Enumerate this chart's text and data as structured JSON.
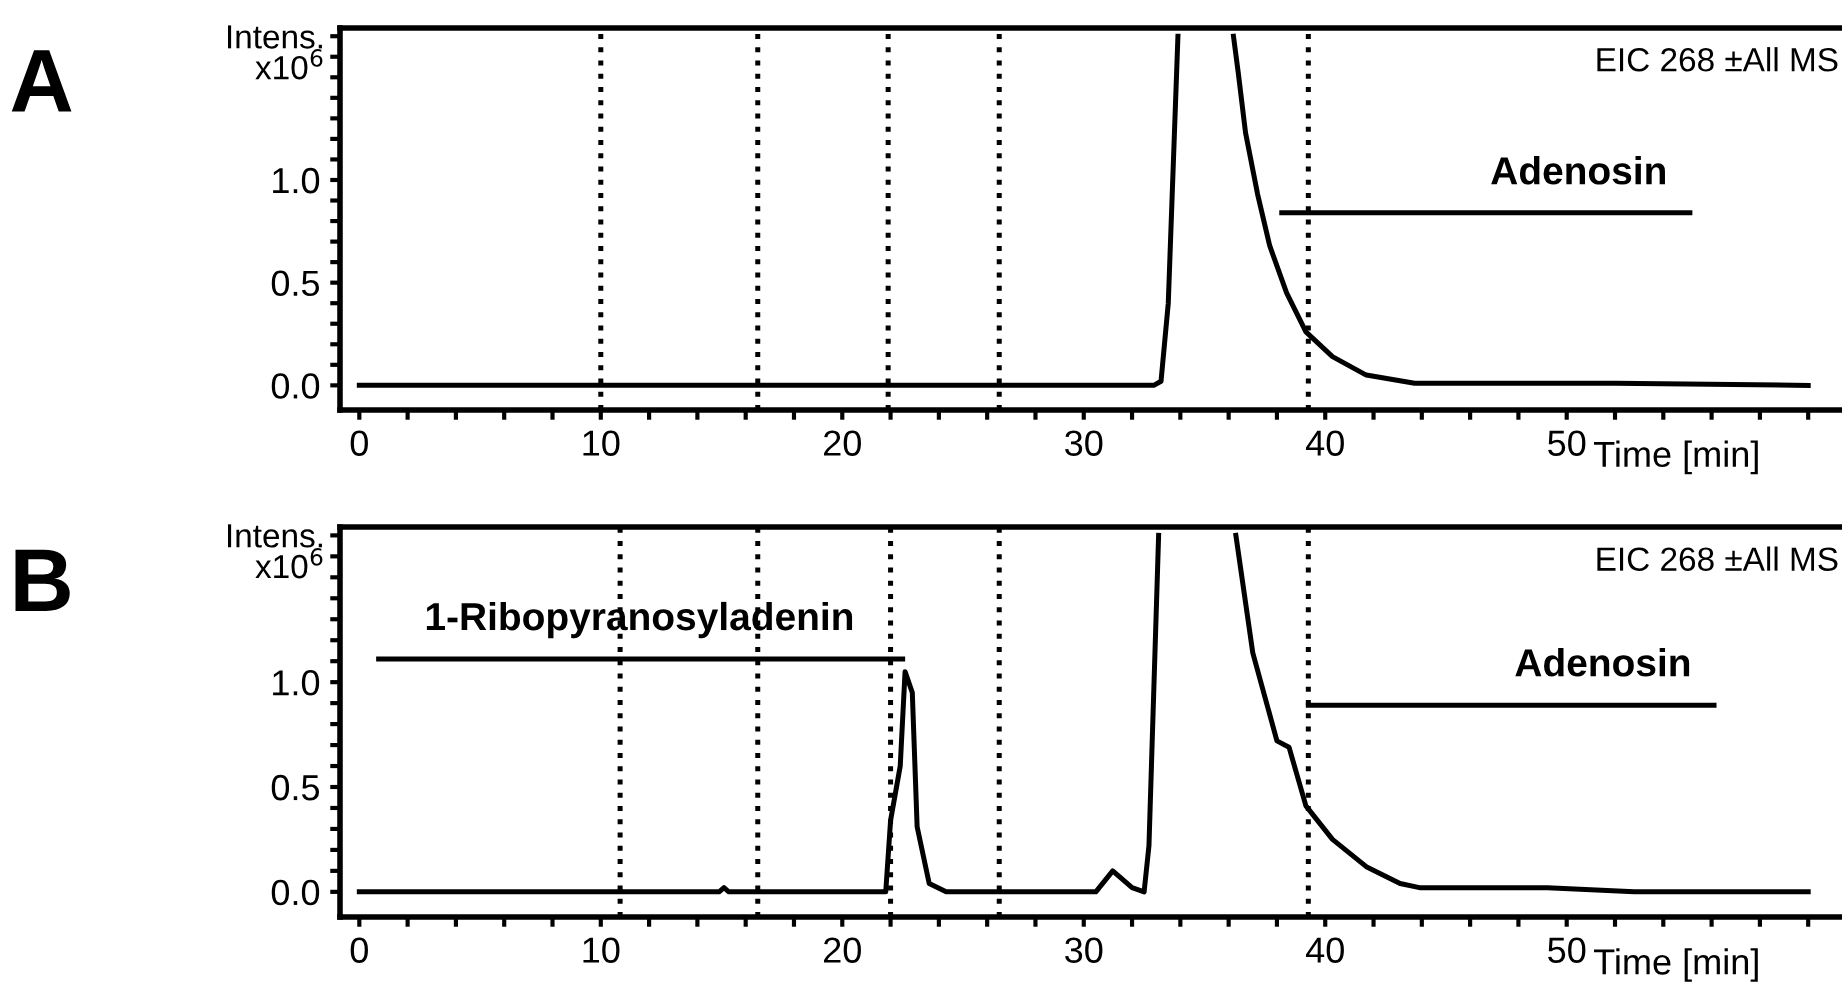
{
  "chart_data": [
    {
      "type": "line",
      "title": "A",
      "ylabel": "Intens.\nx10$^{6}$",
      "xlabel": "Time [min]",
      "xlim": [
        -0.8,
        61.4
      ],
      "ylim": [
        -0.12,
        1.74
      ],
      "xticks": [
        0,
        {
          "value": 2,
          "label": null
        },
        {
          "value": 4,
          "label": null
        },
        {
          "value": 6,
          "label": null
        },
        {
          "value": 8,
          "label": null
        },
        10,
        {
          "value": 12,
          "label": null
        },
        {
          "value": 14,
          "label": null
        },
        {
          "value": 16,
          "label": null
        },
        {
          "value": 18,
          "label": null
        },
        20,
        {
          "value": 22,
          "label": null
        },
        {
          "value": 24,
          "label": null
        },
        {
          "value": 26,
          "label": null
        },
        {
          "value": 28,
          "label": null
        },
        30,
        {
          "value": 32,
          "label": null
        },
        {
          "value": 34,
          "label": null
        },
        {
          "value": 36,
          "label": null
        },
        {
          "value": 38,
          "label": null
        },
        40,
        {
          "value": 42,
          "label": null
        },
        {
          "value": 44,
          "label": null
        },
        {
          "value": 46,
          "label": null
        },
        {
          "value": 48,
          "label": null
        },
        50,
        {
          "value": 52,
          "label": null
        },
        {
          "value": 54,
          "label": null
        },
        {
          "value": 56,
          "label": null
        },
        {
          "value": 58,
          "label": null
        },
        {
          "value": 60,
          "label": null
        }
      ],
      "yticks": [
        {
          "value": 0,
          "label": "0.0"
        },
        {
          "value": 0.1,
          "label": null
        },
        {
          "value": 0.2,
          "label": null
        },
        {
          "value": 0.3,
          "label": null
        },
        {
          "value": 0.4,
          "label": null
        },
        {
          "value": 0.5,
          "label": "0.5"
        },
        {
          "value": 0.6,
          "label": null
        },
        {
          "value": 0.7,
          "label": null
        },
        {
          "value": 0.8,
          "label": null
        },
        {
          "value": 0.9,
          "label": null
        },
        {
          "value": 1.0,
          "label": "1.0"
        },
        {
          "value": 1.1,
          "label": null
        },
        {
          "value": 1.2,
          "label": null
        },
        {
          "value": 1.3,
          "label": null
        },
        {
          "value": 1.4,
          "label": null
        },
        {
          "value": 1.5,
          "label": null
        },
        {
          "value": 1.6,
          "label": null
        },
        {
          "value": 1.7,
          "label": null
        }
      ],
      "grid": false,
      "legend": false,
      "line_style": "solid",
      "series": [
        {
          "color": "#000000",
          "x": [
            0,
            32.9,
            33.2,
            33.5,
            33.9,
            35,
            36.2,
            36.4,
            36.7,
            37.2,
            37.7,
            38.4,
            39.2,
            40.3,
            41.7,
            43.7,
            52,
            60
          ],
          "values": [
            0,
            0,
            0.02,
            0.4,
            1.7,
            null,
            1.7,
            1.52,
            1.23,
            0.93,
            0.68,
            0.45,
            0.26,
            0.14,
            0.05,
            0.01,
            0.01,
            0
          ]
        },
        {
          "color": "#000000",
          "x": [
            38.2,
            55.1
          ],
          "values": [
            0.84,
            0.84
          ]
        }
      ],
      "ref_lines": [
        {
          "axis": "x",
          "value": 10.0,
          "line_style": "dotted",
          "color": "#000000"
        },
        {
          "axis": "x",
          "value": 16.5,
          "line_style": "dotted",
          "color": "#000000"
        },
        {
          "axis": "x",
          "value": 21.9,
          "line_style": "dotted",
          "color": "#000000"
        },
        {
          "axis": "x",
          "value": 26.5,
          "line_style": "dotted",
          "color": "#000000"
        },
        {
          "axis": "x",
          "value": 39.3,
          "line_style": "dotted",
          "color": "#000000"
        }
      ],
      "annotations": [
        "EIC 268 ±All MS",
        {
          "text": "Adenosin",
          "x": 50.5,
          "y": 0.84
        }
      ]
    },
    {
      "type": "line",
      "title": "B",
      "ylabel": "Intens.\nx10$^{6}$",
      "xlabel": "Time [min]",
      "xlim": [
        -0.8,
        61.4
      ],
      "ylim": [
        -0.12,
        1.74
      ],
      "xticks": [
        0,
        {
          "value": 2,
          "label": null
        },
        {
          "value": 4,
          "label": null
        },
        {
          "value": 6,
          "label": null
        },
        {
          "value": 8,
          "label": null
        },
        10,
        {
          "value": 12,
          "label": null
        },
        {
          "value": 14,
          "label": null
        },
        {
          "value": 16,
          "label": null
        },
        {
          "value": 18,
          "label": null
        },
        20,
        {
          "value": 22,
          "label": null
        },
        {
          "value": 24,
          "label": null
        },
        {
          "value": 26,
          "label": null
        },
        {
          "value": 28,
          "label": null
        },
        30,
        {
          "value": 32,
          "label": null
        },
        {
          "value": 34,
          "label": null
        },
        {
          "value": 36,
          "label": null
        },
        {
          "value": 38,
          "label": null
        },
        40,
        {
          "value": 42,
          "label": null
        },
        {
          "value": 44,
          "label": null
        },
        {
          "value": 46,
          "label": null
        },
        {
          "value": 48,
          "label": null
        },
        50,
        {
          "value": 52,
          "label": null
        },
        {
          "value": 54,
          "label": null
        },
        {
          "value": 56,
          "label": null
        },
        {
          "value": 58,
          "label": null
        },
        {
          "value": 60,
          "label": null
        }
      ],
      "yticks": [
        {
          "value": 0,
          "label": "0.0"
        },
        {
          "value": 0.1,
          "label": null
        },
        {
          "value": 0.2,
          "label": null
        },
        {
          "value": 0.3,
          "label": null
        },
        {
          "value": 0.4,
          "label": null
        },
        {
          "value": 0.5,
          "label": "0.5"
        },
        {
          "value": 0.6,
          "label": null
        },
        {
          "value": 0.7,
          "label": null
        },
        {
          "value": 0.8,
          "label": null
        },
        {
          "value": 0.9,
          "label": null
        },
        {
          "value": 1.0,
          "label": "1.0"
        },
        {
          "value": 1.1,
          "label": null
        },
        {
          "value": 1.2,
          "label": null
        },
        {
          "value": 1.3,
          "label": null
        },
        {
          "value": 1.4,
          "label": null
        },
        {
          "value": 1.5,
          "label": null
        },
        {
          "value": 1.6,
          "label": null
        },
        {
          "value": 1.7,
          "label": null
        }
      ],
      "grid": false,
      "legend": false,
      "line_style": "solid",
      "series": [
        {
          "color": "#000000",
          "x": [
            0,
            14.9,
            15.1,
            15.3,
            21.8,
            22.0,
            22.4,
            22.6,
            22.9,
            23.1,
            23.6,
            24.3,
            30.5,
            31.2,
            32.0,
            32.5,
            32.7,
            33.1,
            35,
            36.3,
            37.0,
            38.0,
            38.5,
            39.2,
            40.3,
            41.7,
            43.1,
            43.9,
            49.2,
            52.8,
            60
          ],
          "values": [
            0,
            0,
            0.02,
            0,
            0,
            0.34,
            0.6,
            1.05,
            0.95,
            0.31,
            0.04,
            0,
            0,
            0.1,
            0.02,
            0,
            0.22,
            1.7,
            null,
            1.7,
            1.14,
            0.72,
            0.69,
            0.41,
            0.25,
            0.12,
            0.04,
            0.02,
            0.02,
            0,
            0
          ]
        },
        {
          "color": "#000000",
          "x": [
            0.8,
            22.5
          ],
          "values": [
            1.11,
            1.11
          ]
        },
        {
          "color": "#000000",
          "x": [
            39.3,
            56.1
          ],
          "values": [
            0.89,
            0.89
          ]
        }
      ],
      "ref_lines": [
        {
          "axis": "x",
          "value": 10.8,
          "line_style": "dotted",
          "color": "#000000"
        },
        {
          "axis": "x",
          "value": 16.5,
          "line_style": "dotted",
          "color": "#000000"
        },
        {
          "axis": "x",
          "value": 22.0,
          "line_style": "dotted",
          "color": "#000000"
        },
        {
          "axis": "x",
          "value": 26.5,
          "line_style": "dotted",
          "color": "#000000"
        },
        {
          "axis": "x",
          "value": 39.3,
          "line_style": "dotted",
          "color": "#000000"
        }
      ],
      "annotations": [
        "EIC 268 ±All MS",
        {
          "text": "1-Ribopyranosyladenin",
          "x": 11.6,
          "y": 1.11
        },
        {
          "text": "Adenosin",
          "x": 51.5,
          "y": 0.89
        }
      ]
    }
  ]
}
